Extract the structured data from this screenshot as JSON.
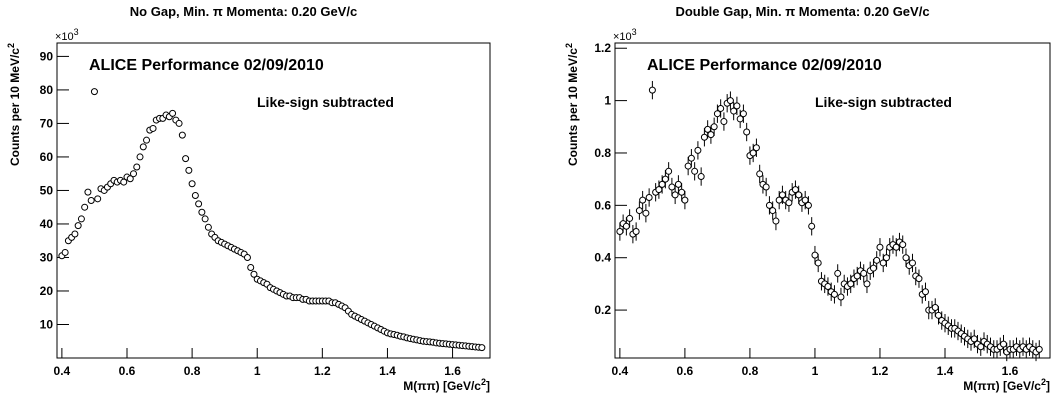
{
  "chart_data": [
    {
      "type": "scatter",
      "title": "No Gap, Min. π Momenta: 0.20 GeV/c",
      "annotations": [
        "ALICE Performance 02/09/2010",
        "Like-sign subtracted"
      ],
      "multiplier": "×10",
      "multiplier_exp": "3",
      "ylabel": [
        "Counts per 10 MeV/c",
        "2"
      ],
      "xlabel": [
        "M(ππ) [GeV/c",
        "2",
        "]"
      ],
      "xlim": [
        0.385,
        1.715
      ],
      "ylim": [
        0,
        94
      ],
      "xticks": [
        0.4,
        0.6,
        0.8,
        1,
        1.2,
        1.4,
        1.6
      ],
      "yticks": [
        10,
        20,
        30,
        40,
        50,
        60,
        70,
        80,
        90
      ],
      "color": "#000000",
      "x": [
        0.4,
        0.41,
        0.42,
        0.43,
        0.44,
        0.45,
        0.46,
        0.47,
        0.48,
        0.49,
        0.5,
        0.51,
        0.52,
        0.53,
        0.54,
        0.55,
        0.56,
        0.57,
        0.58,
        0.59,
        0.6,
        0.61,
        0.62,
        0.63,
        0.64,
        0.65,
        0.66,
        0.67,
        0.68,
        0.69,
        0.7,
        0.71,
        0.72,
        0.73,
        0.74,
        0.75,
        0.76,
        0.77,
        0.78,
        0.79,
        0.8,
        0.81,
        0.82,
        0.83,
        0.84,
        0.85,
        0.86,
        0.87,
        0.88,
        0.89,
        0.9,
        0.91,
        0.92,
        0.93,
        0.94,
        0.95,
        0.96,
        0.97,
        0.98,
        0.99,
        1.0,
        1.01,
        1.02,
        1.03,
        1.04,
        1.05,
        1.06,
        1.07,
        1.08,
        1.09,
        1.1,
        1.11,
        1.12,
        1.13,
        1.14,
        1.15,
        1.16,
        1.17,
        1.18,
        1.19,
        1.2,
        1.21,
        1.22,
        1.23,
        1.24,
        1.25,
        1.26,
        1.27,
        1.28,
        1.29,
        1.3,
        1.31,
        1.32,
        1.33,
        1.34,
        1.35,
        1.36,
        1.37,
        1.38,
        1.39,
        1.4,
        1.41,
        1.42,
        1.43,
        1.44,
        1.45,
        1.46,
        1.47,
        1.48,
        1.49,
        1.5,
        1.51,
        1.52,
        1.53,
        1.54,
        1.55,
        1.56,
        1.57,
        1.58,
        1.59,
        1.6,
        1.61,
        1.62,
        1.63,
        1.64,
        1.65,
        1.66,
        1.67,
        1.68,
        1.69
      ],
      "values": [
        30.5,
        31.5,
        35,
        36,
        37,
        39.5,
        41.5,
        45,
        49.5,
        47,
        79.5,
        47.5,
        50.5,
        50,
        51,
        52,
        53,
        52.5,
        53,
        52.5,
        54,
        53.5,
        55,
        57,
        60,
        63,
        65,
        68,
        68.5,
        71,
        71.5,
        71.5,
        72.5,
        72,
        73,
        71,
        70,
        66.5,
        59.5,
        56,
        52,
        48.5,
        46,
        43.5,
        41.5,
        39,
        37,
        36,
        35,
        34.5,
        34,
        33.5,
        33,
        32.5,
        32,
        31.5,
        31,
        30,
        27,
        25,
        23.5,
        23,
        22.5,
        22,
        21,
        20.5,
        20,
        19.5,
        19,
        18.5,
        18.5,
        18,
        18,
        18,
        17.5,
        17.5,
        17,
        17,
        17,
        17,
        17,
        17,
        17,
        16.5,
        16.5,
        16,
        15.5,
        15,
        14,
        13,
        12.5,
        12,
        11.5,
        11,
        10.5,
        10,
        9.5,
        9,
        8.5,
        8,
        7.5,
        7.2,
        7,
        6.8,
        6.5,
        6.3,
        6,
        5.8,
        5.6,
        5.4,
        5.2,
        5,
        4.9,
        4.8,
        4.7,
        4.5,
        4.4,
        4.3,
        4.2,
        4.1,
        4,
        3.9,
        3.8,
        3.7,
        3.6,
        3.5,
        3.4,
        3.3,
        3.2,
        3.1
      ]
    },
    {
      "type": "errorscatter",
      "title": "Double Gap, Min. π Momenta: 0.20 GeV/c",
      "annotations": [
        "ALICE Performance 02/09/2010",
        "Like-sign subtracted"
      ],
      "multiplier": "×10",
      "multiplier_exp": "3",
      "ylabel": [
        "Counts per 10 MeV/c",
        "2"
      ],
      "xlabel": [
        "M(ππ) [GeV/c",
        "2",
        "]"
      ],
      "xlim": [
        0.385,
        1.723
      ],
      "ylim": [
        0.017,
        1.22
      ],
      "xticks": [
        0.4,
        0.6,
        0.8,
        1,
        1.2,
        1.4,
        1.6
      ],
      "yticks": [
        0.2,
        0.4,
        0.6,
        0.8,
        1,
        1.2
      ],
      "color": "#000000",
      "error": 0.035,
      "x": [
        0.4,
        0.41,
        0.42,
        0.43,
        0.44,
        0.45,
        0.46,
        0.47,
        0.48,
        0.49,
        0.5,
        0.51,
        0.52,
        0.53,
        0.54,
        0.55,
        0.56,
        0.57,
        0.58,
        0.59,
        0.6,
        0.61,
        0.62,
        0.63,
        0.64,
        0.65,
        0.66,
        0.67,
        0.68,
        0.69,
        0.7,
        0.71,
        0.72,
        0.73,
        0.74,
        0.75,
        0.76,
        0.77,
        0.78,
        0.79,
        0.8,
        0.81,
        0.82,
        0.83,
        0.84,
        0.85,
        0.86,
        0.87,
        0.88,
        0.89,
        0.9,
        0.91,
        0.92,
        0.93,
        0.94,
        0.95,
        0.96,
        0.97,
        0.98,
        0.99,
        1.0,
        1.01,
        1.02,
        1.03,
        1.04,
        1.05,
        1.06,
        1.07,
        1.08,
        1.09,
        1.1,
        1.11,
        1.12,
        1.13,
        1.14,
        1.15,
        1.16,
        1.17,
        1.18,
        1.19,
        1.2,
        1.21,
        1.22,
        1.23,
        1.24,
        1.25,
        1.26,
        1.27,
        1.28,
        1.29,
        1.3,
        1.31,
        1.32,
        1.33,
        1.34,
        1.35,
        1.36,
        1.37,
        1.38,
        1.39,
        1.4,
        1.41,
        1.42,
        1.43,
        1.44,
        1.45,
        1.46,
        1.47,
        1.48,
        1.49,
        1.5,
        1.51,
        1.52,
        1.53,
        1.54,
        1.55,
        1.56,
        1.57,
        1.58,
        1.59,
        1.6,
        1.61,
        1.62,
        1.63,
        1.64,
        1.65,
        1.66,
        1.67,
        1.68,
        1.69
      ],
      "values": [
        0.5,
        0.53,
        0.52,
        0.55,
        0.49,
        0.5,
        0.58,
        0.62,
        0.57,
        0.63,
        1.04,
        0.65,
        0.66,
        0.68,
        0.7,
        0.73,
        0.67,
        0.64,
        0.68,
        0.65,
        0.62,
        0.75,
        0.78,
        0.73,
        0.81,
        0.71,
        0.86,
        0.89,
        0.87,
        0.9,
        0.95,
        0.97,
        0.92,
        0.99,
        1.0,
        0.96,
        0.98,
        0.93,
        0.95,
        0.88,
        0.79,
        0.8,
        0.82,
        0.72,
        0.68,
        0.67,
        0.6,
        0.58,
        0.54,
        0.62,
        0.64,
        0.62,
        0.61,
        0.65,
        0.66,
        0.64,
        0.61,
        0.62,
        0.6,
        0.52,
        0.41,
        0.38,
        0.31,
        0.3,
        0.29,
        0.27,
        0.26,
        0.34,
        0.25,
        0.3,
        0.29,
        0.3,
        0.32,
        0.33,
        0.35,
        0.34,
        0.3,
        0.35,
        0.36,
        0.39,
        0.44,
        0.38,
        0.4,
        0.44,
        0.45,
        0.44,
        0.46,
        0.45,
        0.4,
        0.37,
        0.38,
        0.33,
        0.32,
        0.26,
        0.27,
        0.2,
        0.2,
        0.21,
        0.18,
        0.16,
        0.15,
        0.14,
        0.13,
        0.13,
        0.12,
        0.11,
        0.1,
        0.09,
        0.08,
        0.09,
        0.07,
        0.06,
        0.08,
        0.07,
        0.06,
        0.05,
        0.05,
        0.06,
        0.07,
        0.04,
        0.05,
        0.05,
        0.06,
        0.05,
        0.06,
        0.05,
        0.06,
        0.05,
        0.04,
        0.05
      ]
    }
  ]
}
